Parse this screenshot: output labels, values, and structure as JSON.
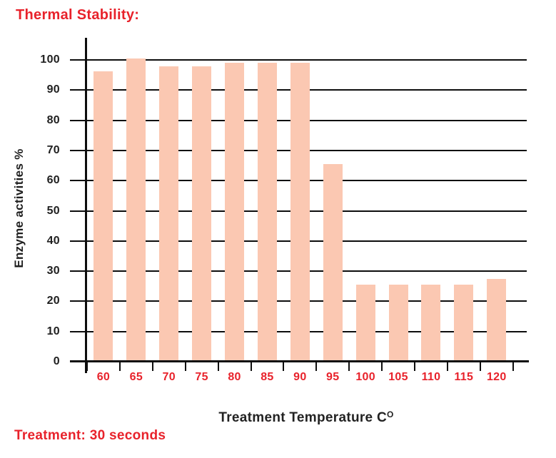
{
  "title": "Thermal Stability:",
  "footer": "Treatment: 30 seconds",
  "chart_data": {
    "type": "bar",
    "title": "Thermal Stability:",
    "categories": [
      "60",
      "65",
      "70",
      "75",
      "80",
      "85",
      "90",
      "95",
      "100",
      "105",
      "110",
      "115",
      "120"
    ],
    "values": [
      96.3,
      100.5,
      97.8,
      97.8,
      99,
      99,
      99,
      65.4,
      25.5,
      25.5,
      25.5,
      25.5,
      27.4
    ],
    "xlabel": "Treatment Temperature C",
    "xlabel_superscript": "O",
    "ylabel": "Enzyme activities %",
    "ylim": [
      0,
      100
    ],
    "yticks": [
      0,
      10,
      20,
      30,
      40,
      50,
      60,
      70,
      80,
      90,
      100
    ],
    "grid": "horizontal",
    "legend": false,
    "annotation": "Treatment: 30 seconds"
  },
  "colors": {
    "bar_fill": "#fbc8b2",
    "accent_red": "#e8222b",
    "axis_black": "#0d0d0d",
    "text_dark": "#222222",
    "background": "#ffffff"
  }
}
